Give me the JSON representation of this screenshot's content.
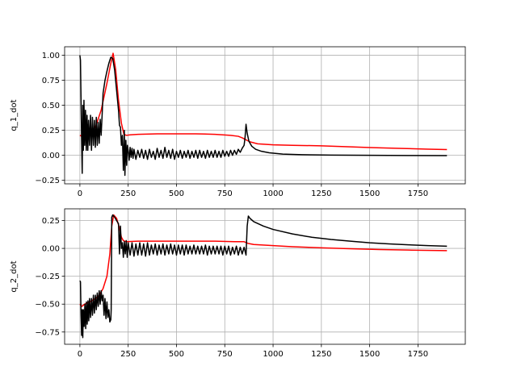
{
  "chart_data": [
    {
      "type": "line",
      "title": "",
      "xlabel": "",
      "ylabel": "q_1_dot",
      "xlim": [
        -79,
        1995
      ],
      "ylim": [
        -0.285,
        1.085
      ],
      "xticks": [
        0,
        250,
        500,
        750,
        1000,
        1250,
        1500,
        1750
      ],
      "xtick_labels": [
        "0",
        "250",
        "500",
        "750",
        "1000",
        "1250",
        "1500",
        "1750"
      ],
      "yticks": [
        -0.25,
        0.0,
        0.25,
        0.5,
        0.75,
        1.0
      ],
      "ytick_labels": [
        "−0.25",
        "0.00",
        "0.25",
        "0.50",
        "0.75",
        "1.00"
      ],
      "grid": true,
      "series": [
        {
          "color": "#ff0000",
          "x": [
            0,
            10,
            25,
            50,
            80,
            110,
            140,
            160,
            172,
            185,
            200,
            215,
            228,
            240,
            260,
            300,
            400,
            500,
            600,
            700,
            780,
            820,
            840,
            860,
            880,
            920,
            1000,
            1100,
            1250,
            1400,
            1500,
            1650,
            1800,
            1900
          ],
          "y": [
            0.2,
            0.19,
            0.17,
            0.21,
            0.28,
            0.45,
            0.72,
            0.92,
            1.02,
            0.86,
            0.55,
            0.32,
            0.21,
            0.2,
            0.205,
            0.21,
            0.215,
            0.215,
            0.215,
            0.21,
            0.2,
            0.19,
            0.175,
            0.155,
            0.135,
            0.115,
            0.105,
            0.1,
            0.095,
            0.085,
            0.078,
            0.07,
            0.062,
            0.058
          ]
        },
        {
          "color": "#000000",
          "x": [
            0,
            3,
            6,
            9,
            12,
            15,
            18,
            21,
            25,
            29,
            33,
            37,
            41,
            45,
            50,
            55,
            60,
            65,
            70,
            75,
            80,
            85,
            90,
            95,
            100,
            105,
            110,
            115,
            120,
            130,
            140,
            150,
            160,
            170,
            180,
            190,
            200,
            205,
            210,
            215,
            220,
            225,
            230,
            233,
            238,
            242,
            246,
            250,
            255,
            260,
            265,
            270,
            275,
            280,
            290,
            300,
            310,
            320,
            330,
            340,
            350,
            360,
            370,
            380,
            390,
            400,
            410,
            420,
            430,
            440,
            450,
            460,
            470,
            480,
            490,
            500,
            510,
            520,
            530,
            540,
            550,
            560,
            570,
            580,
            590,
            600,
            610,
            620,
            630,
            640,
            650,
            660,
            670,
            680,
            690,
            700,
            710,
            720,
            730,
            740,
            750,
            760,
            770,
            780,
            790,
            800,
            810,
            820,
            830,
            840,
            850,
            855,
            860,
            866,
            875,
            890,
            910,
            940,
            980,
            1050,
            1150,
            1300,
            1500,
            1700,
            1900
          ],
          "y": [
            1.0,
            0.95,
            0.55,
            0.15,
            -0.18,
            0.5,
            0.05,
            0.55,
            0.1,
            0.45,
            0.05,
            0.4,
            0.05,
            0.35,
            0.1,
            0.4,
            0.05,
            0.38,
            0.1,
            0.35,
            0.08,
            0.38,
            0.1,
            0.33,
            0.12,
            0.36,
            0.2,
            0.4,
            0.62,
            0.75,
            0.84,
            0.92,
            0.98,
            0.97,
            0.85,
            0.65,
            0.45,
            0.3,
            0.28,
            0.1,
            0.2,
            -0.15,
            0.25,
            -0.2,
            0.15,
            -0.1,
            0.1,
            0.05,
            -0.05,
            0.08,
            -0.02,
            0.07,
            -0.03,
            0.06,
            -0.04,
            0.05,
            -0.02,
            0.06,
            -0.03,
            0.05,
            -0.04,
            0.06,
            -0.02,
            0.04,
            -0.04,
            0.07,
            -0.02,
            0.05,
            -0.03,
            0.08,
            -0.02,
            0.05,
            -0.03,
            0.06,
            -0.04,
            0.04,
            -0.02,
            0.05,
            -0.03,
            0.04,
            -0.02,
            0.05,
            -0.03,
            0.04,
            -0.02,
            0.05,
            -0.03,
            0.05,
            -0.02,
            0.04,
            -0.03,
            0.05,
            -0.02,
            0.04,
            -0.02,
            0.05,
            -0.02,
            0.04,
            -0.02,
            0.05,
            -0.01,
            0.04,
            -0.01,
            0.05,
            0.0,
            0.05,
            0.01,
            0.06,
            0.03,
            0.07,
            0.1,
            0.18,
            0.31,
            0.22,
            0.14,
            0.09,
            0.06,
            0.04,
            0.025,
            0.012,
            0.006,
            0.002,
            0.0,
            -0.002,
            -0.003
          ]
        }
      ]
    },
    {
      "type": "line",
      "title": "",
      "xlabel": "",
      "ylabel": "q_2_dot",
      "xlim": [
        -79,
        1995
      ],
      "ylim": [
        -0.86,
        0.355
      ],
      "xticks": [
        0,
        250,
        500,
        750,
        1000,
        1250,
        1500,
        1750
      ],
      "xtick_labels": [
        "0",
        "250",
        "500",
        "750",
        "1000",
        "1250",
        "1500",
        "1750"
      ],
      "yticks": [
        -0.75,
        -0.5,
        -0.25,
        0.0,
        0.25
      ],
      "ytick_labels": [
        "−0.75",
        "−0.50",
        "−0.25",
        "0.00",
        "0.25"
      ],
      "grid": true,
      "series": [
        {
          "color": "#ff0000",
          "x": [
            0,
            10,
            25,
            50,
            80,
            100,
            120,
            140,
            155,
            165,
            175,
            190,
            205,
            215,
            225,
            240,
            300,
            400,
            500,
            600,
            700,
            800,
            850,
            870,
            900,
            1000,
            1100,
            1250,
            1400,
            1550,
            1700,
            1900
          ],
          "y": [
            -0.5,
            -0.52,
            -0.5,
            -0.48,
            -0.45,
            -0.42,
            -0.36,
            -0.25,
            -0.05,
            0.2,
            0.3,
            0.27,
            0.18,
            0.1,
            0.07,
            0.06,
            0.065,
            0.065,
            0.065,
            0.065,
            0.065,
            0.06,
            0.06,
            0.045,
            0.035,
            0.025,
            0.015,
            0.005,
            -0.003,
            -0.01,
            -0.015,
            -0.02
          ]
        },
        {
          "color": "#000000",
          "x": [
            0,
            3,
            6,
            9,
            12,
            15,
            18,
            22,
            26,
            30,
            34,
            38,
            42,
            46,
            50,
            55,
            60,
            65,
            70,
            75,
            80,
            85,
            90,
            95,
            100,
            105,
            110,
            115,
            120,
            125,
            130,
            135,
            140,
            145,
            150,
            155,
            160,
            162,
            165,
            170,
            180,
            190,
            200,
            205,
            210,
            215,
            220,
            225,
            230,
            235,
            240,
            245,
            250,
            260,
            270,
            280,
            290,
            300,
            310,
            320,
            330,
            340,
            350,
            360,
            370,
            380,
            390,
            400,
            410,
            420,
            430,
            440,
            450,
            460,
            470,
            480,
            490,
            500,
            510,
            520,
            530,
            540,
            550,
            560,
            570,
            580,
            590,
            600,
            610,
            620,
            630,
            640,
            650,
            660,
            670,
            680,
            690,
            700,
            710,
            720,
            730,
            740,
            750,
            760,
            770,
            780,
            790,
            800,
            810,
            820,
            830,
            840,
            850,
            860,
            866,
            872,
            880,
            900,
            950,
            1000,
            1100,
            1200,
            1300,
            1400,
            1500,
            1600,
            1700,
            1800,
            1900
          ],
          "y": [
            -0.29,
            -0.3,
            -0.6,
            -0.78,
            -0.55,
            -0.8,
            -0.55,
            -0.7,
            -0.5,
            -0.72,
            -0.48,
            -0.68,
            -0.47,
            -0.65,
            -0.45,
            -0.62,
            -0.45,
            -0.6,
            -0.42,
            -0.58,
            -0.42,
            -0.55,
            -0.4,
            -0.52,
            -0.38,
            -0.5,
            -0.38,
            -0.47,
            -0.42,
            -0.6,
            -0.45,
            -0.63,
            -0.48,
            -0.62,
            -0.55,
            -0.66,
            -0.64,
            -0.55,
            0.28,
            0.3,
            0.28,
            0.25,
            0.22,
            -0.05,
            0.2,
            0.0,
            0.05,
            -0.08,
            0.06,
            -0.05,
            0.07,
            -0.08,
            0.05,
            -0.06,
            0.05,
            -0.07,
            0.04,
            -0.06,
            0.05,
            -0.06,
            0.04,
            -0.07,
            0.05,
            -0.06,
            0.03,
            -0.05,
            0.04,
            -0.06,
            0.03,
            -0.05,
            0.04,
            -0.06,
            0.03,
            -0.05,
            0.04,
            -0.05,
            0.03,
            -0.06,
            0.03,
            -0.05,
            0.03,
            -0.06,
            0.03,
            -0.05,
            0.02,
            -0.05,
            0.03,
            -0.05,
            0.02,
            -0.05,
            0.02,
            -0.05,
            0.03,
            -0.06,
            0.02,
            -0.05,
            0.02,
            -0.05,
            0.02,
            -0.05,
            0.02,
            -0.06,
            0.02,
            -0.05,
            0.02,
            -0.06,
            0.01,
            -0.05,
            0.02,
            -0.06,
            0.01,
            -0.05,
            0.01,
            -0.06,
            0.2,
            0.29,
            0.27,
            0.24,
            0.2,
            0.17,
            0.13,
            0.1,
            0.08,
            0.065,
            0.05,
            0.04,
            0.032,
            0.025,
            0.02
          ]
        }
      ]
    }
  ]
}
